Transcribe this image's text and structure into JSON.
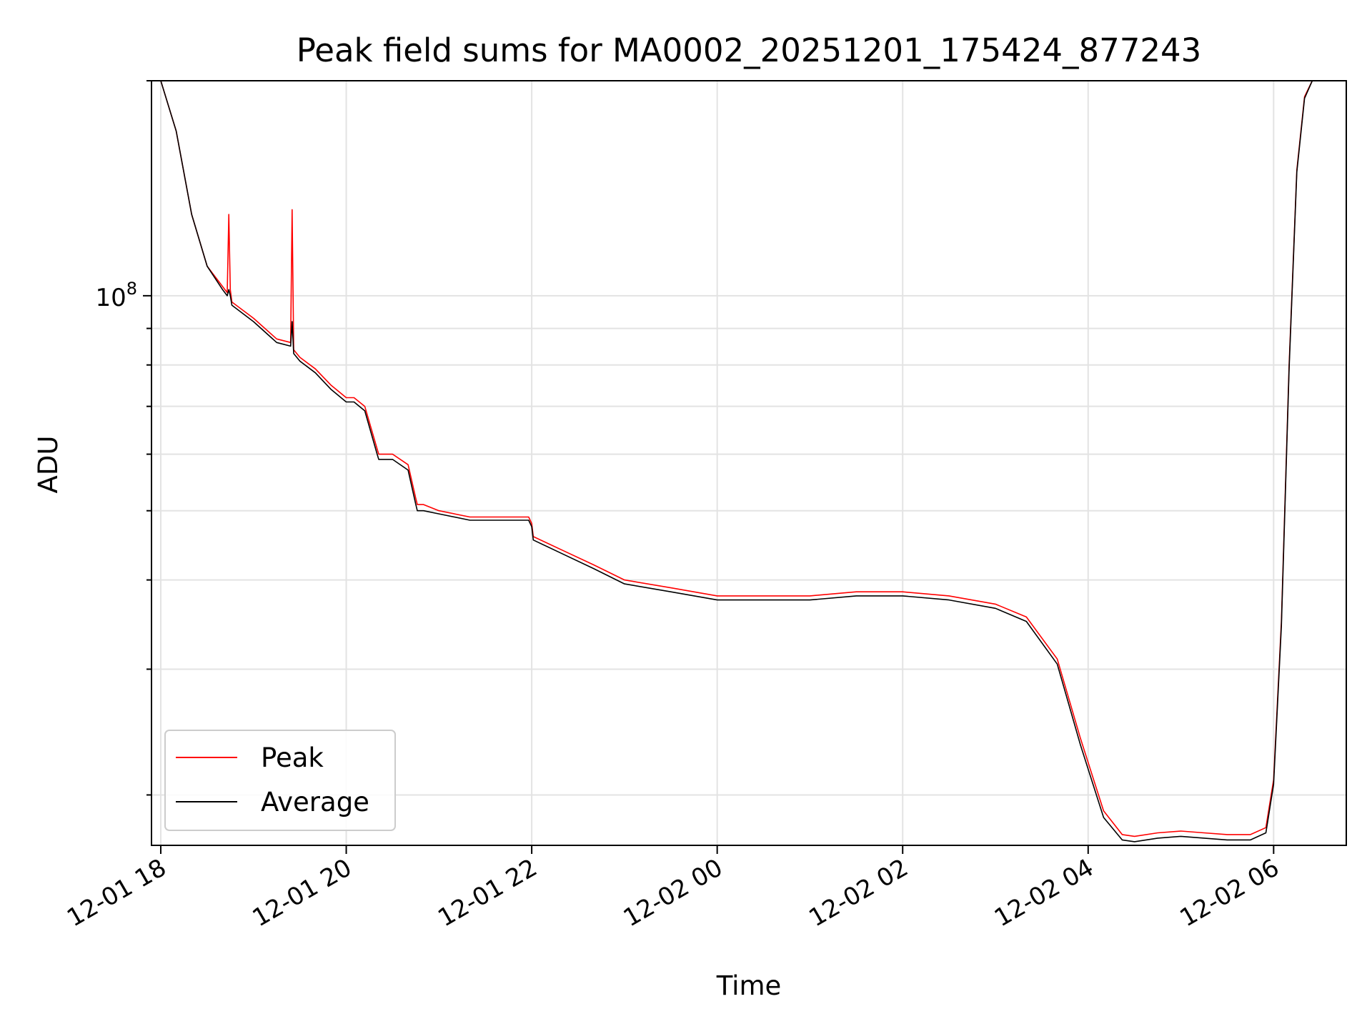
{
  "chart_data": {
    "type": "line",
    "title": "Peak field sums for MA0002_20251201_175424_877243",
    "xlabel": "Time",
    "ylabel": "ADU",
    "x_unit": "datetime",
    "xlim": [
      "2025-12-01 17:54",
      "2025-12-02 06:47"
    ],
    "x_ticks": [
      {
        "value": "2025-12-01 18:00",
        "label": "12-01 18"
      },
      {
        "value": "2025-12-01 20:00",
        "label": "12-01 20"
      },
      {
        "value": "2025-12-01 22:00",
        "label": "12-01 22"
      },
      {
        "value": "2025-12-02 00:00",
        "label": "12-02 00"
      },
      {
        "value": "2025-12-02 02:00",
        "label": "12-02 02"
      },
      {
        "value": "2025-12-02 04:00",
        "label": "12-02 04"
      },
      {
        "value": "2025-12-02 06:00",
        "label": "12-02 06"
      }
    ],
    "y_scale": "log",
    "ylim": [
      17000000,
      200000000
    ],
    "y_major_ticks": [
      {
        "value": 100000000,
        "base": "10",
        "exp": "8"
      }
    ],
    "y_minor_ticks": [
      20000000,
      30000000,
      40000000,
      50000000,
      60000000,
      70000000,
      80000000,
      90000000,
      200000000
    ],
    "grid": true,
    "legend_position": "lower-left",
    "series": [
      {
        "name": "Peak",
        "color": "#ff0000",
        "x": [
          "2025-12-01 17:54",
          "2025-12-01 18:00",
          "2025-12-01 18:10",
          "2025-12-01 18:20",
          "2025-12-01 18:30",
          "2025-12-01 18:40",
          "2025-12-01 18:43",
          "2025-12-01 18:44",
          "2025-12-01 18:45",
          "2025-12-01 18:46",
          "2025-12-01 19:00",
          "2025-12-01 19:15",
          "2025-12-01 19:24",
          "2025-12-01 19:25",
          "2025-12-01 19:26",
          "2025-12-01 19:30",
          "2025-12-01 19:40",
          "2025-12-01 19:50",
          "2025-12-01 20:00",
          "2025-12-01 20:05",
          "2025-12-01 20:12",
          "2025-12-01 20:20",
          "2025-12-01 20:21",
          "2025-12-01 20:30",
          "2025-12-01 20:40",
          "2025-12-01 20:45",
          "2025-12-01 20:46",
          "2025-12-01 20:50",
          "2025-12-01 21:00",
          "2025-12-01 21:20",
          "2025-12-01 21:40",
          "2025-12-01 21:58",
          "2025-12-01 22:00",
          "2025-12-01 22:01",
          "2025-12-01 22:20",
          "2025-12-01 22:40",
          "2025-12-01 23:00",
          "2025-12-01 23:30",
          "2025-12-02 00:00",
          "2025-12-02 00:30",
          "2025-12-02 01:00",
          "2025-12-02 01:30",
          "2025-12-02 02:00",
          "2025-12-02 02:30",
          "2025-12-02 03:00",
          "2025-12-02 03:20",
          "2025-12-02 03:40",
          "2025-12-02 03:55",
          "2025-12-02 04:10",
          "2025-12-02 04:22",
          "2025-12-02 04:30",
          "2025-12-02 04:45",
          "2025-12-02 05:00",
          "2025-12-02 05:15",
          "2025-12-02 05:30",
          "2025-12-02 05:45",
          "2025-12-02 05:55",
          "2025-12-02 06:00",
          "2025-12-02 06:05",
          "2025-12-02 06:10",
          "2025-12-02 06:15",
          "2025-12-02 06:20",
          "2025-12-02 06:25",
          "2025-12-02 06:30",
          "2025-12-02 06:47"
        ],
        "y": [
          200000000,
          200000000,
          170000000,
          130000000,
          110000000,
          103000000,
          101000000,
          130000000,
          102000000,
          98000000,
          93000000,
          87000000,
          86000000,
          132000000,
          84000000,
          82000000,
          79000000,
          75000000,
          72000000,
          72000000,
          70000000,
          61000000,
          60000000,
          60000000,
          58000000,
          52000000,
          51000000,
          51000000,
          50000000,
          49000000,
          49000000,
          49000000,
          48000000,
          46000000,
          44000000,
          42000000,
          40000000,
          39000000,
          38000000,
          38000000,
          38000000,
          38500000,
          38500000,
          38000000,
          37000000,
          35500000,
          31000000,
          24000000,
          19000000,
          17600000,
          17500000,
          17700000,
          17800000,
          17700000,
          17600000,
          17600000,
          18000000,
          21000000,
          35000000,
          80000000,
          150000000,
          190000000,
          200000000,
          200000000,
          200000000
        ]
      },
      {
        "name": "Average",
        "color": "#000000",
        "x": [
          "2025-12-01 17:54",
          "2025-12-01 18:00",
          "2025-12-01 18:10",
          "2025-12-01 18:20",
          "2025-12-01 18:30",
          "2025-12-01 18:40",
          "2025-12-01 18:43",
          "2025-12-01 18:44",
          "2025-12-01 18:45",
          "2025-12-01 18:46",
          "2025-12-01 19:00",
          "2025-12-01 19:15",
          "2025-12-01 19:24",
          "2025-12-01 19:25",
          "2025-12-01 19:26",
          "2025-12-01 19:30",
          "2025-12-01 19:40",
          "2025-12-01 19:50",
          "2025-12-01 20:00",
          "2025-12-01 20:05",
          "2025-12-01 20:12",
          "2025-12-01 20:20",
          "2025-12-01 20:21",
          "2025-12-01 20:30",
          "2025-12-01 20:40",
          "2025-12-01 20:45",
          "2025-12-01 20:46",
          "2025-12-01 20:50",
          "2025-12-01 21:00",
          "2025-12-01 21:20",
          "2025-12-01 21:40",
          "2025-12-01 21:58",
          "2025-12-01 22:00",
          "2025-12-01 22:01",
          "2025-12-01 22:20",
          "2025-12-01 22:40",
          "2025-12-01 23:00",
          "2025-12-01 23:30",
          "2025-12-02 00:00",
          "2025-12-02 00:30",
          "2025-12-02 01:00",
          "2025-12-02 01:30",
          "2025-12-02 02:00",
          "2025-12-02 02:30",
          "2025-12-02 03:00",
          "2025-12-02 03:20",
          "2025-12-02 03:40",
          "2025-12-02 03:55",
          "2025-12-02 04:10",
          "2025-12-02 04:22",
          "2025-12-02 04:30",
          "2025-12-02 04:45",
          "2025-12-02 05:00",
          "2025-12-02 05:15",
          "2025-12-02 05:30",
          "2025-12-02 05:45",
          "2025-12-02 05:55",
          "2025-12-02 06:00",
          "2025-12-02 06:05",
          "2025-12-02 06:10",
          "2025-12-02 06:15",
          "2025-12-02 06:20",
          "2025-12-02 06:25",
          "2025-12-02 06:30",
          "2025-12-02 06:47"
        ],
        "y": [
          200000000,
          200000000,
          170000000,
          130000000,
          110000000,
          102000000,
          100000000,
          102000000,
          100000000,
          97000000,
          92000000,
          86000000,
          85000000,
          92000000,
          83000000,
          81000000,
          78000000,
          74000000,
          71000000,
          71000000,
          69000000,
          60000000,
          59000000,
          59000000,
          57000000,
          51000000,
          50000000,
          50000000,
          49500000,
          48500000,
          48500000,
          48500000,
          47500000,
          45500000,
          43500000,
          41500000,
          39500000,
          38500000,
          37500000,
          37500000,
          37500000,
          38000000,
          38000000,
          37500000,
          36500000,
          35000000,
          30500000,
          23500000,
          18600000,
          17300000,
          17200000,
          17400000,
          17500000,
          17400000,
          17300000,
          17300000,
          17700000,
          20700000,
          34500000,
          79000000,
          149000000,
          189000000,
          200000000,
          200000000,
          200000000
        ]
      }
    ]
  }
}
